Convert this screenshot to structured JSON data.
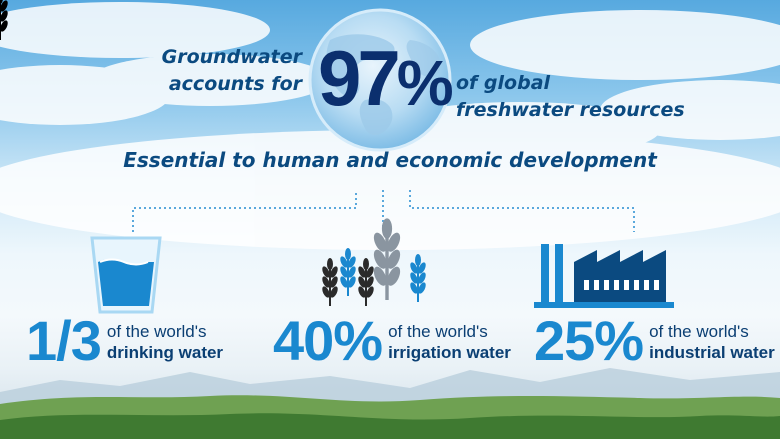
{
  "headline": {
    "line1": "Groundwater",
    "line2": "accounts for",
    "percent_number": "97",
    "percent_sign": "%",
    "line3": "of global",
    "line4": "freshwater resources"
  },
  "subheadline": "Essential to human and economic development",
  "stats": [
    {
      "value": "1/3",
      "prefix": "of the world's",
      "label": "drinking water",
      "icon": "water-glass-icon"
    },
    {
      "value": "40%",
      "prefix": "of the world's",
      "label": "irrigation water",
      "icon": "wheat-crops-icon"
    },
    {
      "value": "25%",
      "prefix": "of the world's",
      "label": "industrial water",
      "icon": "factory-icon"
    }
  ],
  "colors": {
    "headline": "#0b4a80",
    "big_percent": "#0b2f6e",
    "stat_value": "#1a88cf",
    "icon_blue": "#1a88cf",
    "icon_dark": "#2b2b2b",
    "icon_grey": "#8a95a0",
    "hills": "#4f8a3c"
  }
}
